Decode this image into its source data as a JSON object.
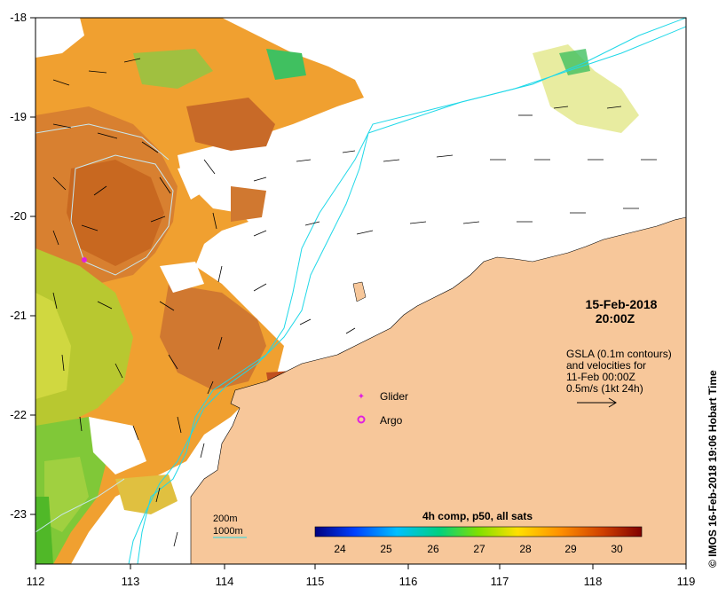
{
  "map": {
    "date": "15-Feb-2018",
    "time": "20:00Z",
    "gsla_line1": "GSLA (0.1m contours)",
    "gsla_line2": "and velocities for",
    "gsla_line3": "11-Feb 00:00Z",
    "gsla_line4": "0.5m/s (1kt 24h)",
    "credit": "© IMOS 16-Feb-2018 19:06 Hobart Time",
    "legend_glider": "Glider",
    "legend_argo": "Argo",
    "legend_200m": "200m",
    "legend_1000m": "1000m",
    "colorbar_title": "4h comp, p50, all sats",
    "colorbar_ticks": [
      "24",
      "25",
      "26",
      "27",
      "28",
      "29",
      "30"
    ],
    "lon_ticks": [
      "112",
      "113",
      "114",
      "115",
      "116",
      "117",
      "118",
      "119"
    ],
    "lat_ticks": [
      "-18",
      "-19",
      "-20",
      "-21",
      "-22",
      "-23"
    ]
  },
  "colors": {
    "land": "#f7c79a",
    "isobath_200": "#20d8e8",
    "isobath_1000": "#c8e8f0",
    "argo": "#e020e0",
    "glider": "#e020e0"
  }
}
